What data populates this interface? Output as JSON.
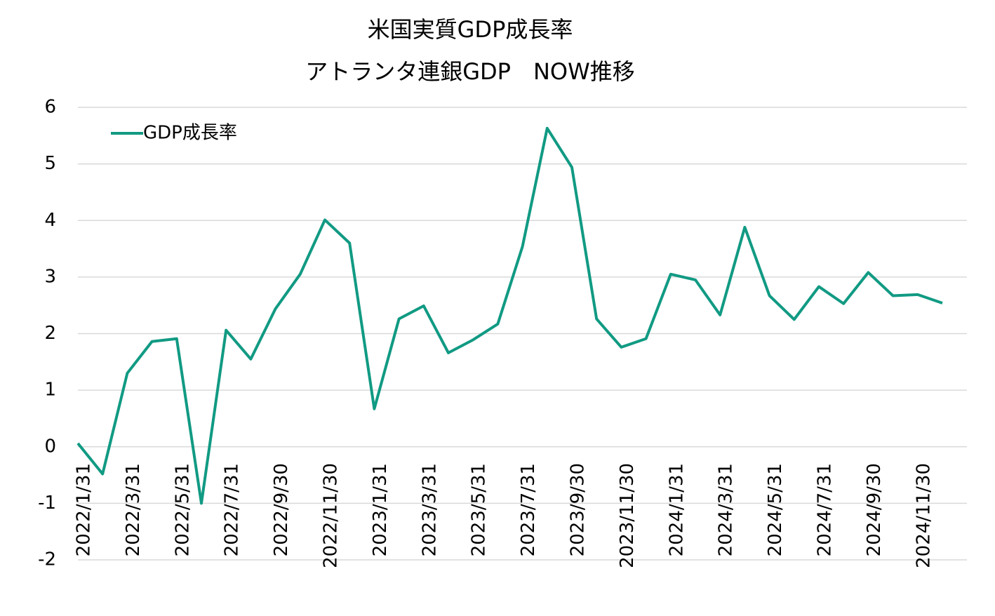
{
  "chart_data": {
    "type": "line",
    "title": [
      "米国実質GDP成長率",
      "アトランタ連銀GDP　NOW推移"
    ],
    "categories": [
      "2022/1/31",
      null,
      "2022/3/31",
      null,
      "2022/5/31",
      null,
      "2022/7/31",
      null,
      "2022/9/30",
      null,
      "2022/11/30",
      null,
      "2023/1/31",
      null,
      "2023/3/31",
      null,
      "2023/5/31",
      null,
      "2023/7/31",
      null,
      "2023/9/30",
      null,
      "2023/11/30",
      null,
      "2024/1/31",
      null,
      "2024/3/31",
      null,
      "2024/5/31",
      null,
      "2024/7/31",
      null,
      "2024/9/30",
      null,
      "2024/11/30",
      null
    ],
    "series": [
      {
        "name": "GDP成長率",
        "color": "#119a83",
        "values": [
          0.06,
          -0.48,
          1.3,
          1.86,
          1.91,
          -1.0,
          2.06,
          1.55,
          2.44,
          3.05,
          4.01,
          3.6,
          0.67,
          2.26,
          2.49,
          1.66,
          1.89,
          2.17,
          3.54,
          5.63,
          4.94,
          2.26,
          1.76,
          1.91,
          3.05,
          2.95,
          2.33,
          3.88,
          2.67,
          2.25,
          2.83,
          2.53,
          3.08,
          2.67,
          2.69,
          2.54
        ]
      }
    ],
    "ylim": [
      -2,
      6
    ],
    "yticks": [
      -2,
      -1,
      0,
      1,
      2,
      3,
      4,
      5,
      6
    ],
    "grid": true,
    "legend": "top-left"
  }
}
